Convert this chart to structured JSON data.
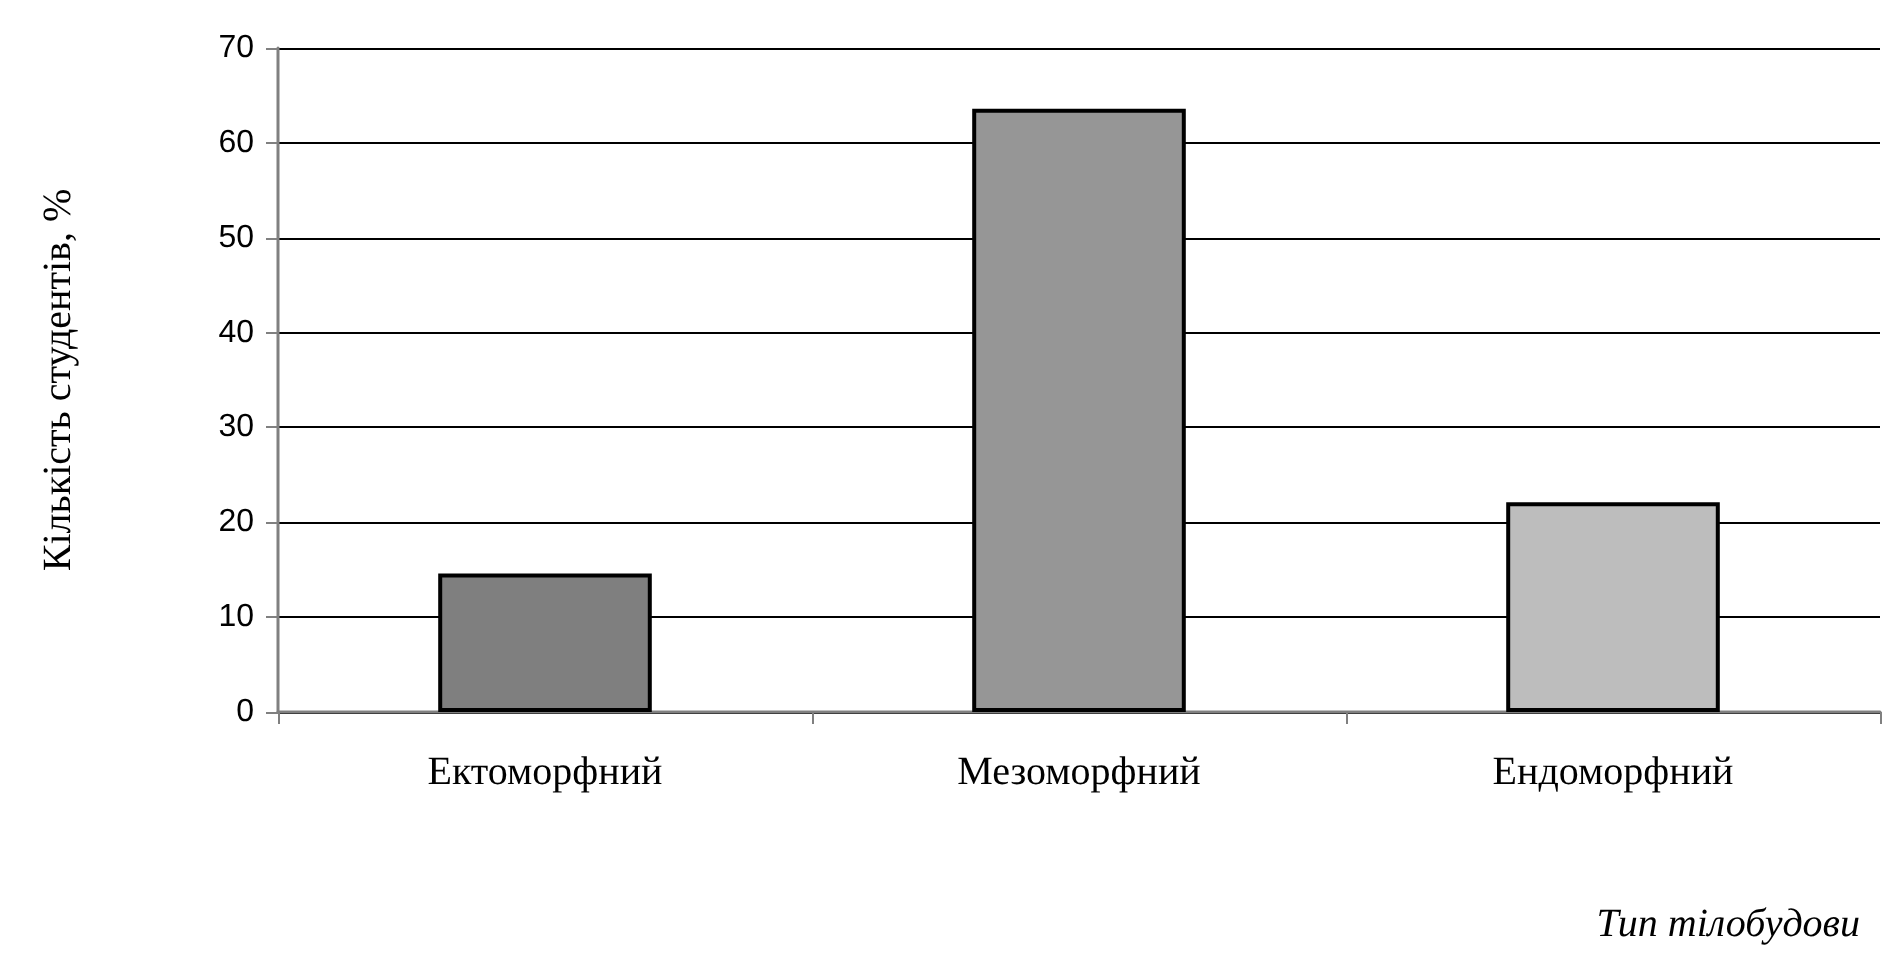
{
  "chart_data": {
    "type": "bar",
    "categories": [
      "Ектоморфний",
      "Мезоморфний",
      "Ендоморфний"
    ],
    "values": [
      14.6,
      63.6,
      22.1
    ],
    "colors": [
      "#7f7f7f",
      "#969696",
      "#bdbdbd"
    ],
    "xlabel": "Тип тілобудови",
    "ylabel": "Кількість студентів, %",
    "ylim": [
      0,
      70
    ],
    "yticks": [
      0,
      10,
      20,
      30,
      40,
      50,
      60,
      70
    ],
    "grid": "y"
  }
}
